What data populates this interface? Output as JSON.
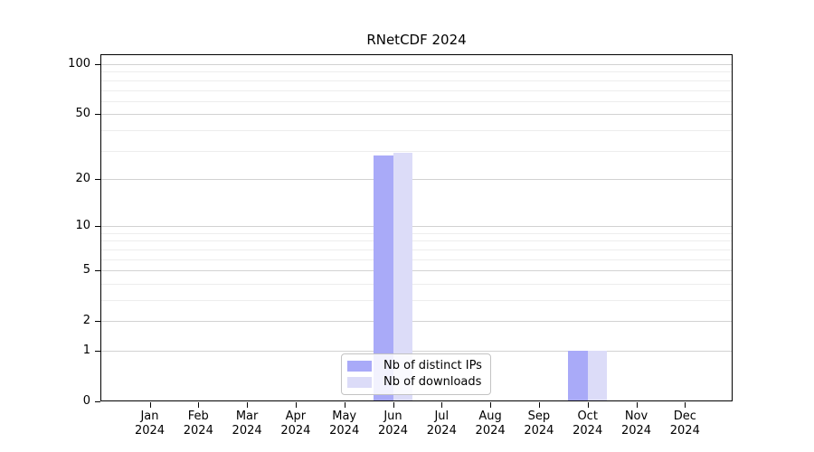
{
  "chart_data": {
    "type": "bar",
    "title": "RNetCDF 2024",
    "categories": [
      "Jan 2024",
      "Feb 2024",
      "Mar 2024",
      "Apr 2024",
      "May 2024",
      "Jun 2024",
      "Jul 2024",
      "Aug 2024",
      "Sep 2024",
      "Oct 2024",
      "Nov 2024",
      "Dec 2024"
    ],
    "series": [
      {
        "name": "Nb of distinct IPs",
        "color": "#a9aaf8",
        "values": [
          0,
          0,
          0,
          0,
          0,
          28,
          0,
          0,
          0,
          1,
          0,
          0
        ]
      },
      {
        "name": "Nb of downloads",
        "color": "#dcdcf8",
        "values": [
          0,
          0,
          0,
          0,
          0,
          29,
          0,
          0,
          0,
          1,
          0,
          0
        ]
      }
    ],
    "yscale": "log1p",
    "ylim": [
      0,
      100
    ],
    "yticks": [
      0,
      1,
      2,
      5,
      10,
      20,
      50,
      100
    ],
    "minor_gridlines": [
      3,
      4,
      6,
      7,
      8,
      9,
      30,
      40,
      60,
      70,
      80,
      90
    ],
    "grid": true,
    "legend_position": "bottom-center",
    "colors": {
      "major_gridline": "#d2d2d2",
      "minor_gridline": "#ededed",
      "axis": "#000000",
      "legend_border": "#c3c3c3"
    }
  }
}
